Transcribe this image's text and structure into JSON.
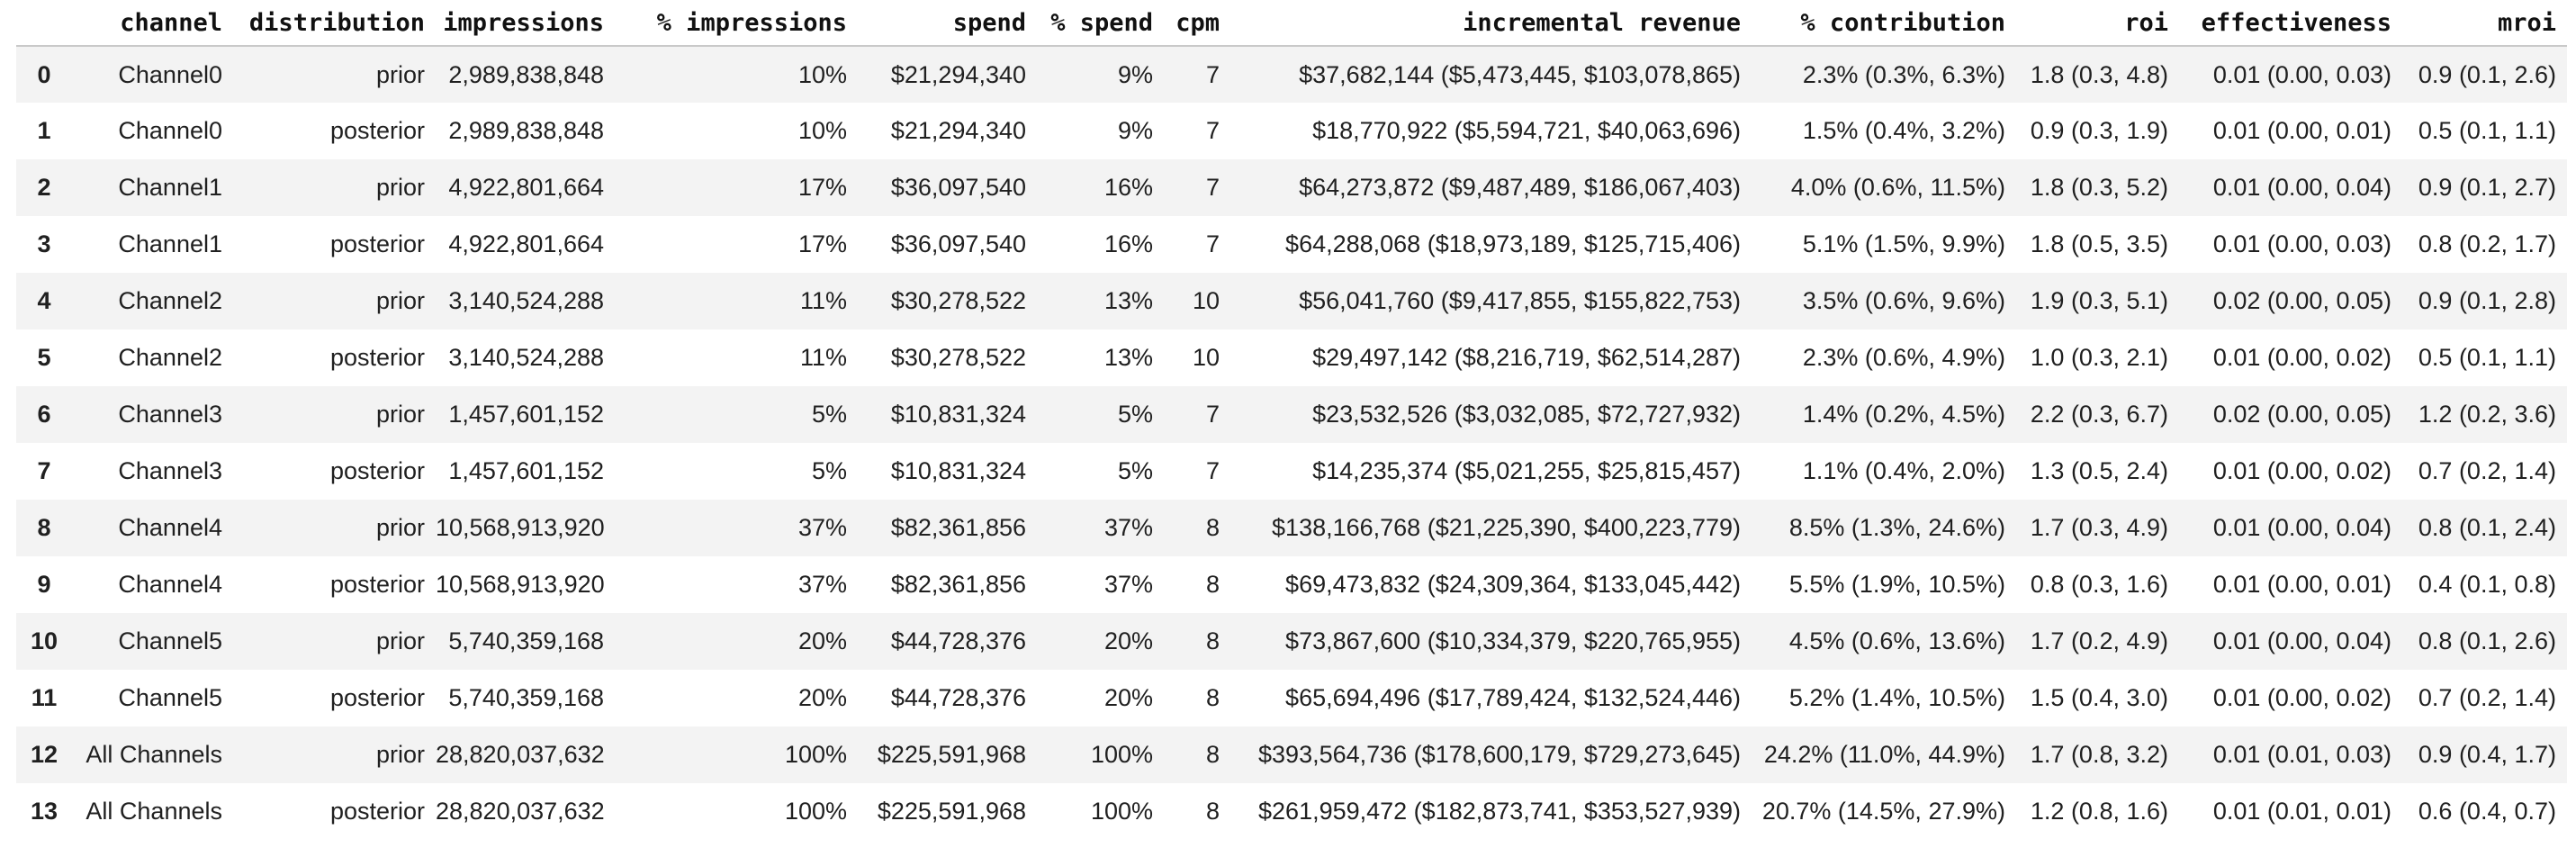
{
  "table": {
    "columns": [
      "",
      "channel",
      "distribution",
      "impressions",
      "% impressions",
      "spend",
      "% spend",
      "cpm",
      "incremental revenue",
      "% contribution",
      "roi",
      "effectiveness",
      "mroi"
    ],
    "column_keys": [
      "index",
      "channel",
      "distribution",
      "impressions",
      "pct-impressions",
      "spend",
      "pct-spend",
      "cpm",
      "incremental-revenue",
      "pct-contribution",
      "roi",
      "effectiveness",
      "mroi"
    ],
    "rows": [
      [
        "0",
        "Channel0",
        "prior",
        "2,989,838,848",
        "10%",
        "$21,294,340",
        "9%",
        "7",
        "$37,682,144 ($5,473,445, $103,078,865)",
        "2.3% (0.3%, 6.3%)",
        "1.8 (0.3, 4.8)",
        "0.01 (0.00, 0.03)",
        "0.9 (0.1, 2.6)"
      ],
      [
        "1",
        "Channel0",
        "posterior",
        "2,989,838,848",
        "10%",
        "$21,294,340",
        "9%",
        "7",
        "$18,770,922 ($5,594,721, $40,063,696)",
        "1.5% (0.4%, 3.2%)",
        "0.9 (0.3, 1.9)",
        "0.01 (0.00, 0.01)",
        "0.5 (0.1, 1.1)"
      ],
      [
        "2",
        "Channel1",
        "prior",
        "4,922,801,664",
        "17%",
        "$36,097,540",
        "16%",
        "7",
        "$64,273,872 ($9,487,489, $186,067,403)",
        "4.0% (0.6%, 11.5%)",
        "1.8 (0.3, 5.2)",
        "0.01 (0.00, 0.04)",
        "0.9 (0.1, 2.7)"
      ],
      [
        "3",
        "Channel1",
        "posterior",
        "4,922,801,664",
        "17%",
        "$36,097,540",
        "16%",
        "7",
        "$64,288,068 ($18,973,189, $125,715,406)",
        "5.1% (1.5%, 9.9%)",
        "1.8 (0.5, 3.5)",
        "0.01 (0.00, 0.03)",
        "0.8 (0.2, 1.7)"
      ],
      [
        "4",
        "Channel2",
        "prior",
        "3,140,524,288",
        "11%",
        "$30,278,522",
        "13%",
        "10",
        "$56,041,760 ($9,417,855, $155,822,753)",
        "3.5% (0.6%, 9.6%)",
        "1.9 (0.3, 5.1)",
        "0.02 (0.00, 0.05)",
        "0.9 (0.1, 2.8)"
      ],
      [
        "5",
        "Channel2",
        "posterior",
        "3,140,524,288",
        "11%",
        "$30,278,522",
        "13%",
        "10",
        "$29,497,142 ($8,216,719, $62,514,287)",
        "2.3% (0.6%, 4.9%)",
        "1.0 (0.3, 2.1)",
        "0.01 (0.00, 0.02)",
        "0.5 (0.1, 1.1)"
      ],
      [
        "6",
        "Channel3",
        "prior",
        "1,457,601,152",
        "5%",
        "$10,831,324",
        "5%",
        "7",
        "$23,532,526 ($3,032,085, $72,727,932)",
        "1.4% (0.2%, 4.5%)",
        "2.2 (0.3, 6.7)",
        "0.02 (0.00, 0.05)",
        "1.2 (0.2, 3.6)"
      ],
      [
        "7",
        "Channel3",
        "posterior",
        "1,457,601,152",
        "5%",
        "$10,831,324",
        "5%",
        "7",
        "$14,235,374 ($5,021,255, $25,815,457)",
        "1.1% (0.4%, 2.0%)",
        "1.3 (0.5, 2.4)",
        "0.01 (0.00, 0.02)",
        "0.7 (0.2, 1.4)"
      ],
      [
        "8",
        "Channel4",
        "prior",
        "10,568,913,920",
        "37%",
        "$82,361,856",
        "37%",
        "8",
        "$138,166,768 ($21,225,390, $400,223,779)",
        "8.5% (1.3%, 24.6%)",
        "1.7 (0.3, 4.9)",
        "0.01 (0.00, 0.04)",
        "0.8 (0.1, 2.4)"
      ],
      [
        "9",
        "Channel4",
        "posterior",
        "10,568,913,920",
        "37%",
        "$82,361,856",
        "37%",
        "8",
        "$69,473,832 ($24,309,364, $133,045,442)",
        "5.5% (1.9%, 10.5%)",
        "0.8 (0.3, 1.6)",
        "0.01 (0.00, 0.01)",
        "0.4 (0.1, 0.8)"
      ],
      [
        "10",
        "Channel5",
        "prior",
        "5,740,359,168",
        "20%",
        "$44,728,376",
        "20%",
        "8",
        "$73,867,600 ($10,334,379, $220,765,955)",
        "4.5% (0.6%, 13.6%)",
        "1.7 (0.2, 4.9)",
        "0.01 (0.00, 0.04)",
        "0.8 (0.1, 2.6)"
      ],
      [
        "11",
        "Channel5",
        "posterior",
        "5,740,359,168",
        "20%",
        "$44,728,376",
        "20%",
        "8",
        "$65,694,496 ($17,789,424, $132,524,446)",
        "5.2% (1.4%, 10.5%)",
        "1.5 (0.4, 3.0)",
        "0.01 (0.00, 0.02)",
        "0.7 (0.2, 1.4)"
      ],
      [
        "12",
        "All Channels",
        "prior",
        "28,820,037,632",
        "100%",
        "$225,591,968",
        "100%",
        "8",
        "$393,564,736 ($178,600,179, $729,273,645)",
        "24.2% (11.0%, 44.9%)",
        "1.7 (0.8, 3.2)",
        "0.01 (0.01, 0.03)",
        "0.9 (0.4, 1.7)"
      ],
      [
        "13",
        "All Channels",
        "posterior",
        "28,820,037,632",
        "100%",
        "$225,591,968",
        "100%",
        "8",
        "$261,959,472 ($182,873,741, $353,527,939)",
        "20.7% (14.5%, 27.9%)",
        "1.2 (0.8, 1.6)",
        "0.01 (0.01, 0.01)",
        "0.6 (0.4, 0.7)"
      ]
    ],
    "colors": {
      "stripe": "#f3f3f3",
      "header_border": "#c9c9c9",
      "text": "#202020",
      "header_text": "#111111",
      "background": "#ffffff"
    }
  }
}
